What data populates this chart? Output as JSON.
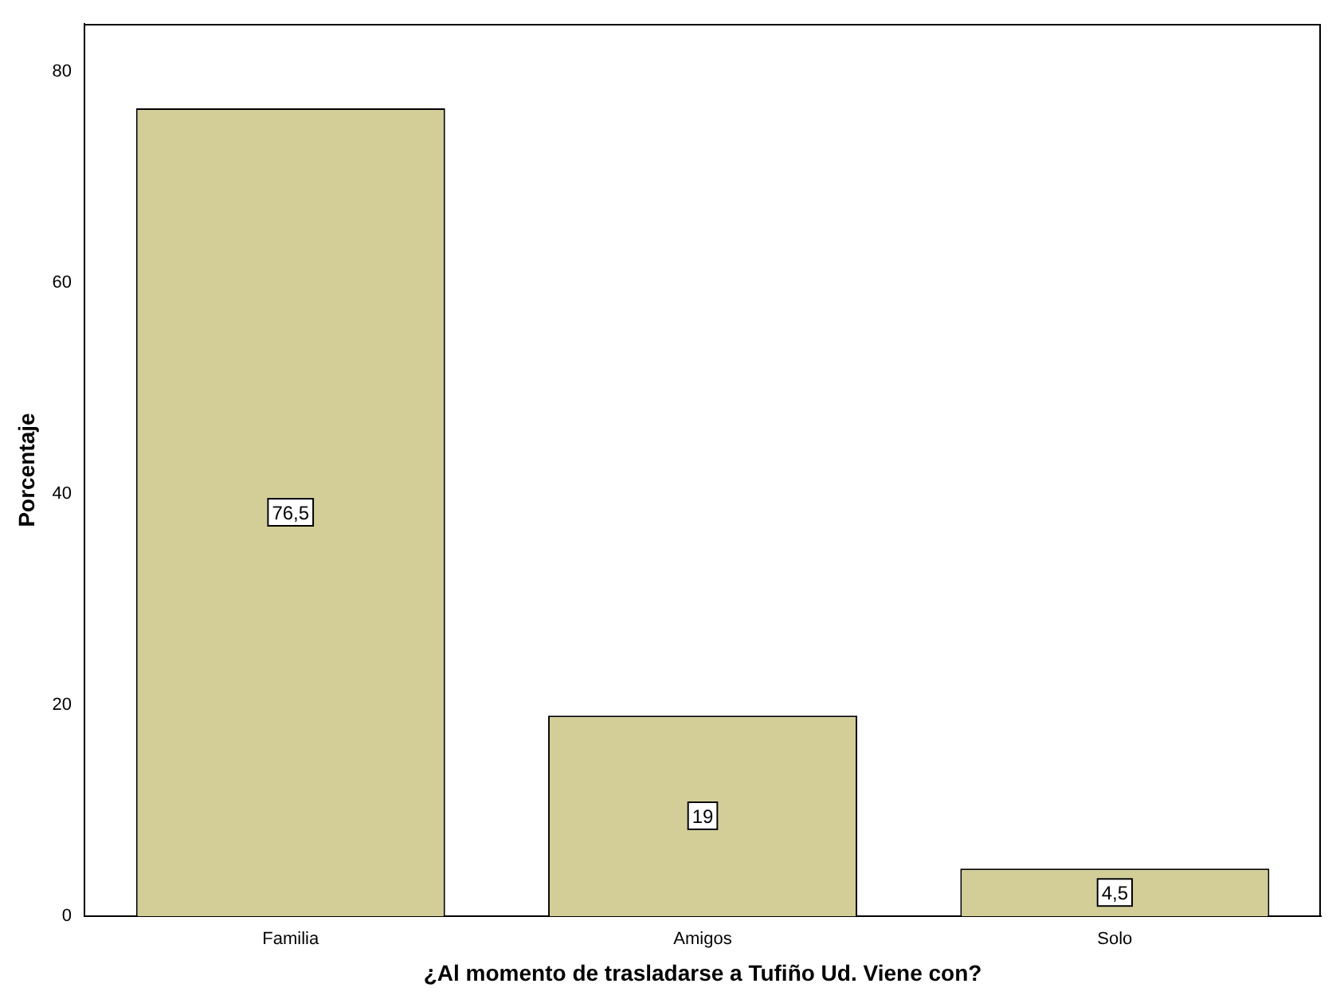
{
  "chart_data": {
    "type": "bar",
    "xlabel": "¿Al momento de trasladarse a Tufiño Ud. Viene con?",
    "ylabel": "Porcentaje",
    "categories": [
      "Familia",
      "Amigos",
      "Solo"
    ],
    "values": [
      76.5,
      19,
      4.5
    ],
    "value_labels": [
      "76,5",
      "19",
      "4,5"
    ],
    "color": "#d3ce97",
    "ylim": [
      0,
      84.5
    ],
    "yticks": [
      0,
      20,
      40,
      60,
      80
    ],
    "grid": false,
    "legend": false
  }
}
